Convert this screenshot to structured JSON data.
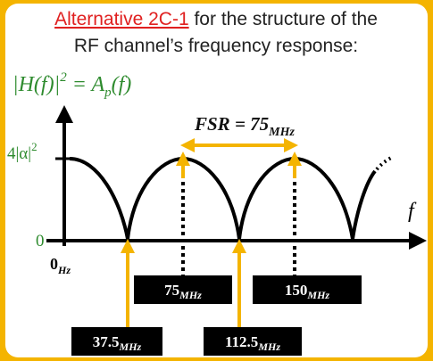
{
  "title": {
    "highlight": "Alternative 2C-1",
    "rest": " for the structure of the",
    "line2": "RF channel’s frequency response:"
  },
  "equation": {
    "lhs": "|H(f)|",
    "power": "2",
    "eq": " = A",
    "sub": "p",
    "rhs": "(f)"
  },
  "fsr": {
    "main": "FSR = 75",
    "sub": "MHz"
  },
  "axis": {
    "y_top": "4|α|",
    "y_top_power": "2",
    "y_zero": "0",
    "x_origin": "0",
    "x_origin_sub": "Hz",
    "x_name": "f"
  },
  "markers": [
    {
      "main": "75",
      "sub": "MHz"
    },
    {
      "main": "150",
      "sub": "MHz"
    },
    {
      "main": "37.5",
      "sub": "MHz"
    },
    {
      "main": "112.5",
      "sub": "MHz"
    }
  ]
}
